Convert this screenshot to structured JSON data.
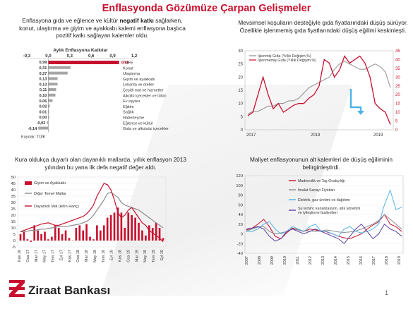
{
  "title": "Enflasyonda Gözümüze Çarpan Gelişmeler",
  "text_top_left": {
    "pre": "Enflasyona gıda ve eğlence ve kültür ",
    "bold": "negatif katkı",
    "post": " sağlarken, konut, ulaştırma ve giyim ve ayakkabı kalemi enflasyona başlıca pozitif katkı sağlayan kalemler oldu."
  },
  "text_top_right": "Mevsimsel koşulların desteğiyle gıda fiyatlarındaki düşüş sürüyor. Özellikle işlenmemiş gıda fiyatlarındaki düşüş eğilimi keskinleşti.",
  "text_bottom_left": "Kura oldukça duyarlı olan dayanıklı mallarda, yıllık enflasyon 2013 yılından bu yana ilk defa negatif değer aldı.",
  "text_bottom_right": "Maliyet enflasyonunun alt kalemleri de düşüş eğiliminin belirginleştirdi.",
  "page_number": "1",
  "logo_text": "Ziraat Bankası",
  "colors": {
    "red": "#c8102e",
    "grey": "#8c8c8c",
    "darkred": "#8b1a1a",
    "blue": "#4fb3e8",
    "purple": "#5b3fa0"
  },
  "chart_data": [
    {
      "type": "bar",
      "title": "Aylık Enflasyona Katkılar",
      "source": "Kaynak: TÜİK",
      "xlim": [
        -0.3,
        1.2
      ],
      "xticks": [
        "-0,3",
        "0,0",
        "0,3",
        "0,6",
        "0,9",
        "1,2"
      ],
      "categories": [
        "TÜFE",
        "Konut",
        "Ulaştırma",
        "Giyim ve ayakkabı",
        "Lokanta ve oteller",
        "Çeşitli mal ve hizmetler",
        "Alkollü içecekler ve tütün",
        "Ev eşyası",
        "Eğitim",
        "Sağlık",
        "Haberleşme",
        "Eğlence ve kültür",
        "Gıda ve alkolsüz içecekler"
      ],
      "values": [
        0.99,
        0.31,
        0.27,
        0.13,
        0.13,
        0.11,
        0.1,
        0.06,
        0.02,
        0.01,
        0.0,
        -0.02,
        -0.14
      ],
      "value_labels": [
        "0,99",
        "0,31",
        "0,27",
        "0,13",
        "0,13",
        "0,11",
        "0,10",
        "0,06",
        "0,02",
        "0,01",
        "0,00",
        "-0,02",
        "-0,14"
      ]
    },
    {
      "type": "line",
      "x_labels": [
        "2017",
        "2018",
        "2019"
      ],
      "ylim_left": [
        0,
        30
      ],
      "yticks_left": [
        "0",
        "5",
        "10",
        "15",
        "20",
        "25",
        "30"
      ],
      "ylim_right": [
        0,
        45
      ],
      "yticks_right": [
        "0",
        "5",
        "10",
        "15",
        "20",
        "25",
        "30",
        "35",
        "40",
        "45"
      ],
      "series": [
        {
          "name": "İşlenmiş Gıda (Yıllık Değişim,%)",
          "axis": "left",
          "values": [
            6,
            7,
            7,
            8,
            9,
            9,
            10,
            10,
            11,
            11,
            12,
            14,
            16,
            17,
            18,
            19,
            20,
            23,
            25,
            26,
            25,
            24,
            23,
            23,
            24,
            25,
            24,
            22,
            16
          ]
        },
        {
          "name": "İşlenmemiş Gıda (Yıllık Değişim,%)",
          "axis": "right",
          "values": [
            8,
            10,
            20,
            30,
            20,
            12,
            15,
            10,
            12,
            14,
            15,
            15,
            18,
            20,
            25,
            40,
            38,
            30,
            34,
            42,
            38,
            40,
            42,
            38,
            30,
            15,
            12,
            10,
            3
          ]
        }
      ]
    },
    {
      "type": "line",
      "x_labels": [
        "Kas 16",
        "Oca 17",
        "Mar 17",
        "May 17",
        "Tem 17",
        "Eyl 17",
        "Kas 17",
        "Oca 18",
        "Mar 18",
        "May 18",
        "Tem 18",
        "Eyl 18",
        "Kas 18",
        "Oca 19",
        "Mar 19",
        "May 19",
        "Tem 19",
        "Eyl 19"
      ],
      "ylim": [
        -5,
        50
      ],
      "yticks": [
        "-5",
        "0",
        "5",
        "10",
        "15",
        "20",
        "25",
        "30",
        "35",
        "40",
        "45",
        "50"
      ],
      "series": [
        {
          "name": "Giyim ve Ayakkabı",
          "type": "bar",
          "values": [
            5,
            7,
            1,
            -1,
            12,
            8,
            5,
            7,
            1,
            3,
            12,
            10,
            5,
            8,
            2,
            0,
            10,
            12,
            8,
            13,
            3,
            1,
            12,
            8,
            12,
            18,
            20,
            22,
            26,
            22,
            10,
            22,
            20,
            18,
            14,
            8,
            4,
            12,
            10,
            14,
            10,
            2
          ]
        },
        {
          "name": "Diğer Temel Mallar",
          "type": "line",
          "values": [
            7,
            7,
            7.5,
            8,
            8,
            8.5,
            9,
            9,
            9.5,
            10,
            10.5,
            11,
            11,
            11,
            11.5,
            12,
            12.5,
            13,
            14,
            15,
            17,
            20,
            24,
            28,
            32,
            37,
            38,
            36,
            34,
            30,
            28,
            27,
            26,
            25,
            24,
            22,
            20,
            18,
            16,
            14,
            12,
            10
          ]
        },
        {
          "name": "Dayanıklı Mal (Altın Hariç)",
          "type": "line",
          "values": [
            7,
            8,
            9,
            10,
            11,
            12,
            13,
            13.5,
            14,
            13,
            12,
            12,
            13,
            14,
            15,
            16,
            17,
            18,
            19,
            21,
            24,
            28,
            35,
            40,
            45,
            44,
            40,
            32,
            22,
            18,
            20,
            24,
            26,
            22,
            18,
            14,
            12,
            8,
            6,
            4,
            2,
            -1
          ]
        }
      ]
    },
    {
      "type": "line",
      "x_labels": [
        "2007",
        "2008",
        "2009",
        "2010",
        "2011",
        "2012",
        "2013",
        "2014",
        "2015",
        "2016",
        "2017",
        "2018",
        "2019"
      ],
      "ylim": [
        -40,
        120
      ],
      "yticks": [
        "-40",
        "-20",
        "0",
        "20",
        "40",
        "60",
        "80",
        "100",
        "120"
      ],
      "series": [
        {
          "name": "Madencilik ve Taş Ocakçılığı",
          "color": "#c8102e",
          "values": [
            8,
            12,
            20,
            30,
            15,
            -5,
            -10,
            2,
            12,
            8,
            5,
            10,
            8,
            6,
            4,
            0,
            -5,
            -8,
            -10,
            -5,
            0,
            10,
            18,
            25,
            40,
            20,
            15,
            5
          ]
        },
        {
          "name": "İmalat Sanayi Fiyatları",
          "color": "#8c8c8c",
          "values": [
            6,
            10,
            14,
            15,
            5,
            0,
            2,
            5,
            10,
            8,
            6,
            6,
            5,
            6,
            8,
            6,
            4,
            3,
            4,
            6,
            10,
            15,
            20,
            28,
            40,
            30,
            20,
            10
          ]
        },
        {
          "name": "Elektrik, gaz üretimi ve dağıtımı",
          "color": "#4fb3e8",
          "values": [
            5,
            5,
            10,
            20,
            25,
            10,
            0,
            5,
            15,
            10,
            5,
            15,
            20,
            5,
            5,
            0,
            -5,
            10,
            15,
            5,
            2,
            5,
            10,
            20,
            60,
            90,
            50,
            55
          ]
        },
        {
          "name": "Su temini; kanalizasyon, atık yönetimi ve iyileştirme faaliyetleri",
          "color": "#5b3fa0",
          "values": [
            10,
            12,
            15,
            10,
            -5,
            -15,
            -10,
            5,
            10,
            5,
            0,
            5,
            10,
            5,
            0,
            -5,
            -10,
            -20,
            -5,
            10,
            20,
            5,
            -10,
            0,
            20,
            10,
            5,
            -5
          ]
        }
      ]
    }
  ]
}
